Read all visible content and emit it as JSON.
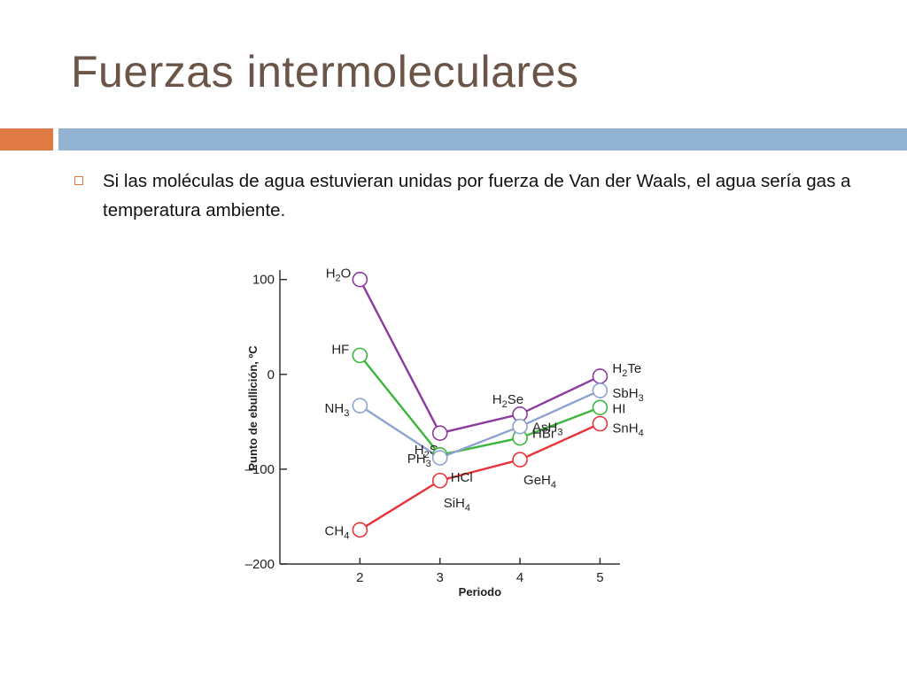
{
  "slide": {
    "title": "Fuerzas intermoleculares",
    "bullet": "Si las moléculas de agua estuvieran unidas por fuerza de Van der Waals, el agua sería gas a temperatura ambiente."
  },
  "colors": {
    "title": "#6b5548",
    "accent_orange": "#e07a44",
    "accent_blue": "#93b3d2"
  },
  "chart_data": {
    "type": "line",
    "xlabel": "Periodo",
    "ylabel": "Punto de ebullición, ºC",
    "x": [
      2,
      3,
      4,
      5
    ],
    "xlim": [
      1,
      5.25
    ],
    "ylim": [
      -200,
      110
    ],
    "yticks": [
      100,
      0,
      -100,
      -200
    ],
    "ytick_labels": [
      "100",
      "0",
      "–100",
      "–200"
    ],
    "xticks": [
      2,
      3,
      4,
      5
    ],
    "grid": false,
    "series": [
      {
        "color": "#8b3a9e",
        "values": [
          100,
          -62,
          -42,
          -2
        ],
        "labels": [
          {
            "s": "H2O",
            "pre": "H",
            "sub": "2",
            "post": "O"
          },
          {
            "s": "H2S",
            "pre": "H",
            "sub": "2",
            "post": "S"
          },
          {
            "s": "H2Se",
            "pre": "H",
            "sub": "2",
            "post": "Se"
          },
          {
            "s": "H2Te",
            "pre": "H",
            "sub": "2",
            "post": "Te"
          }
        ]
      },
      {
        "color": "#3cb53c",
        "values": [
          20,
          -85,
          -67,
          -35
        ],
        "labels": [
          {
            "s": "HF",
            "pre": "HF",
            "sub": "",
            "post": ""
          },
          {
            "s": "HCl",
            "pre": "HCl",
            "sub": "",
            "post": ""
          },
          {
            "s": "HBr",
            "pre": "HBr",
            "sub": "",
            "post": ""
          },
          {
            "s": "HI",
            "pre": "HI",
            "sub": "",
            "post": ""
          }
        ]
      },
      {
        "color": "#8fa3d0",
        "values": [
          -33,
          -88,
          -55,
          -17
        ],
        "labels": [
          {
            "s": "NH3",
            "pre": "NH",
            "sub": "3",
            "post": ""
          },
          {
            "s": "PH3",
            "pre": "PH",
            "sub": "3",
            "post": ""
          },
          {
            "s": "AsH3",
            "pre": "AsH",
            "sub": "3",
            "post": ""
          },
          {
            "s": "SbH3",
            "pre": "SbH",
            "sub": "3",
            "post": ""
          }
        ]
      },
      {
        "color": "#e8333a",
        "values": [
          -164,
          -112,
          -90,
          -52
        ],
        "labels": [
          {
            "s": "CH4",
            "pre": "CH",
            "sub": "4",
            "post": ""
          },
          {
            "s": "SiH4",
            "pre": "SiH",
            "sub": "4",
            "post": ""
          },
          {
            "s": "GeH4",
            "pre": "GeH",
            "sub": "4",
            "post": ""
          },
          {
            "s": "SnH4",
            "pre": "SnH",
            "sub": "4",
            "post": ""
          }
        ]
      }
    ]
  }
}
